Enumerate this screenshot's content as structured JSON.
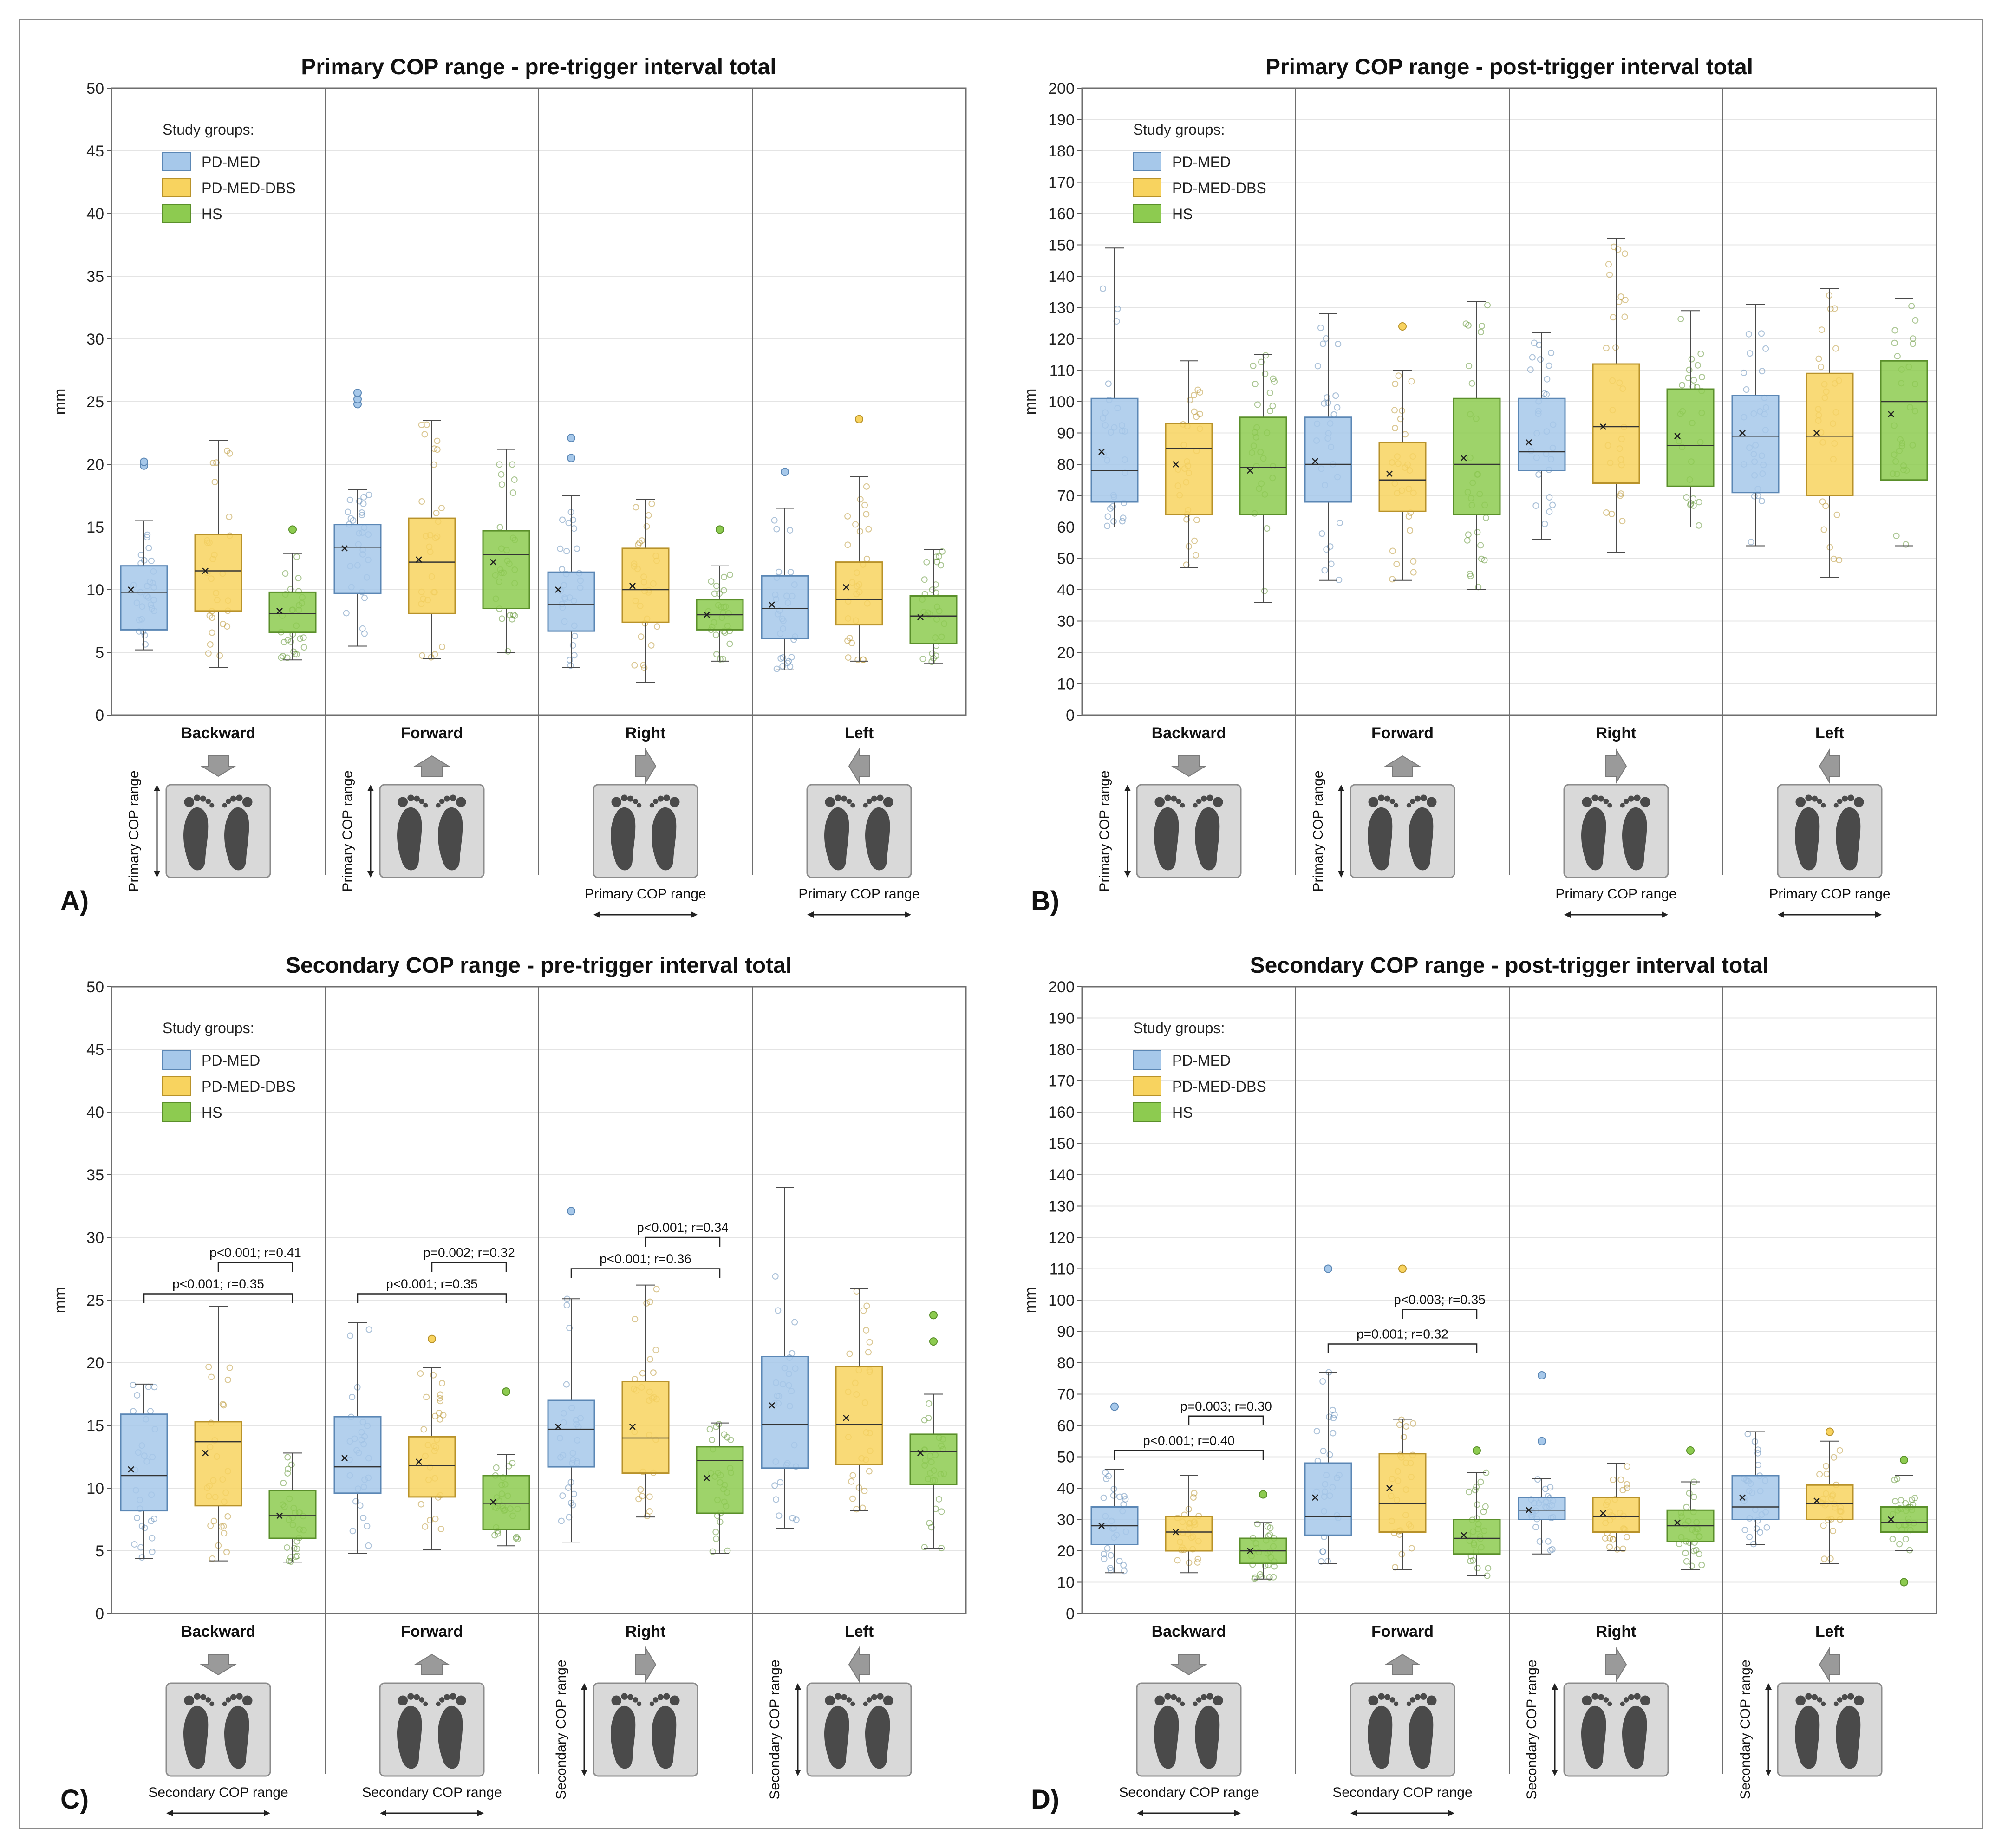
{
  "colors": {
    "PD-MED": "#a6c8ea",
    "PD-MED-DBS": "#f8d35f",
    "HS": "#8dcb50",
    "PD-MED-edge": "#5b87b5",
    "PD-MED-DBS-edge": "#b8922a",
    "HS-edge": "#5a8f2a",
    "panel_edge": "#6e6e6e",
    "grid": "#e4e4e4",
    "arrow": "#9a9a9a",
    "plate": "#d9d9d9",
    "foot": "#4a4a4a"
  },
  "chart_data": [
    {
      "panel": "A)",
      "type": "box",
      "title": "Primary COP range - pre-trigger interval total",
      "ylabel": "mm",
      "ylim": [
        0,
        50
      ],
      "ytick_step": 5,
      "legend_title": "Study groups:",
      "groups": [
        "PD-MED",
        "PD-MED-DBS",
        "HS"
      ],
      "categories": [
        "Backward",
        "Forward",
        "Right",
        "Left"
      ],
      "icon_labels": [
        "Primary COP range",
        "Primary COP range",
        "Primary COP range",
        "Primary COP range"
      ],
      "icon_label_orient": [
        "vertical",
        "vertical",
        "horizontal",
        "horizontal"
      ],
      "annotations": [],
      "boxes": [
        [
          {
            "min": 5.2,
            "q1": 6.8,
            "median": 9.8,
            "q3": 11.9,
            "max": 15.5,
            "mean": 10.0,
            "outliers": [
              19.9,
              20.2
            ]
          },
          {
            "min": 3.8,
            "q1": 8.3,
            "median": 11.5,
            "q3": 14.4,
            "max": 21.9,
            "mean": 11.5,
            "outliers": []
          },
          {
            "min": 4.4,
            "q1": 6.6,
            "median": 8.1,
            "q3": 9.8,
            "max": 12.9,
            "mean": 8.3,
            "outliers": [
              14.8
            ]
          }
        ],
        [
          {
            "min": 5.5,
            "q1": 9.7,
            "median": 13.4,
            "q3": 15.2,
            "max": 18.0,
            "mean": 13.3,
            "outliers": [
              24.8,
              25.2,
              25.7
            ]
          },
          {
            "min": 4.5,
            "q1": 8.1,
            "median": 12.2,
            "q3": 15.7,
            "max": 23.5,
            "mean": 12.4,
            "outliers": []
          },
          {
            "min": 5.0,
            "q1": 8.5,
            "median": 12.8,
            "q3": 14.7,
            "max": 21.2,
            "mean": 12.2,
            "outliers": []
          }
        ],
        [
          {
            "min": 3.8,
            "q1": 6.7,
            "median": 8.8,
            "q3": 11.4,
            "max": 17.5,
            "mean": 10.0,
            "outliers": [
              20.5,
              22.1
            ]
          },
          {
            "min": 2.6,
            "q1": 7.4,
            "median": 10.0,
            "q3": 13.3,
            "max": 17.2,
            "mean": 10.3,
            "outliers": []
          },
          {
            "min": 4.3,
            "q1": 6.8,
            "median": 8.0,
            "q3": 9.2,
            "max": 11.9,
            "mean": 8.0,
            "outliers": [
              14.8
            ]
          }
        ],
        [
          {
            "min": 3.6,
            "q1": 6.1,
            "median": 8.5,
            "q3": 11.1,
            "max": 16.5,
            "mean": 8.8,
            "outliers": [
              19.4
            ]
          },
          {
            "min": 4.3,
            "q1": 7.2,
            "median": 9.2,
            "q3": 12.2,
            "max": 19.0,
            "mean": 10.2,
            "outliers": [
              23.6
            ]
          },
          {
            "min": 4.1,
            "q1": 5.7,
            "median": 7.9,
            "q3": 9.5,
            "max": 13.2,
            "mean": 7.8,
            "outliers": []
          }
        ]
      ]
    },
    {
      "panel": "B)",
      "type": "box",
      "title": "Primary COP range - post-trigger interval total",
      "ylabel": "mm",
      "ylim": [
        0,
        200
      ],
      "ytick_step": 10,
      "legend_title": "Study groups:",
      "groups": [
        "PD-MED",
        "PD-MED-DBS",
        "HS"
      ],
      "categories": [
        "Backward",
        "Forward",
        "Right",
        "Left"
      ],
      "icon_labels": [
        "Primary COP range",
        "Primary COP range",
        "Primary COP range",
        "Primary COP range"
      ],
      "icon_label_orient": [
        "vertical",
        "vertical",
        "horizontal",
        "horizontal"
      ],
      "annotations": [],
      "boxes": [
        [
          {
            "min": 60,
            "q1": 68,
            "median": 78,
            "q3": 101,
            "max": 149,
            "mean": 84,
            "outliers": []
          },
          {
            "min": 47,
            "q1": 64,
            "median": 85,
            "q3": 93,
            "max": 113,
            "mean": 80,
            "outliers": []
          },
          {
            "min": 36,
            "q1": 64,
            "median": 79,
            "q3": 95,
            "max": 115,
            "mean": 78,
            "outliers": []
          }
        ],
        [
          {
            "min": 43,
            "q1": 68,
            "median": 80,
            "q3": 95,
            "max": 128,
            "mean": 81,
            "outliers": []
          },
          {
            "min": 43,
            "q1": 65,
            "median": 75,
            "q3": 87,
            "max": 110,
            "mean": 77,
            "outliers": [
              124
            ]
          },
          {
            "min": 40,
            "q1": 64,
            "median": 80,
            "q3": 101,
            "max": 132,
            "mean": 82,
            "outliers": []
          }
        ],
        [
          {
            "min": 56,
            "q1": 78,
            "median": 84,
            "q3": 101,
            "max": 122,
            "mean": 87,
            "outliers": []
          },
          {
            "min": 52,
            "q1": 74,
            "median": 92,
            "q3": 112,
            "max": 152,
            "mean": 92,
            "outliers": []
          },
          {
            "min": 60,
            "q1": 73,
            "median": 86,
            "q3": 104,
            "max": 129,
            "mean": 89,
            "outliers": []
          }
        ],
        [
          {
            "min": 54,
            "q1": 71,
            "median": 89,
            "q3": 102,
            "max": 131,
            "mean": 90,
            "outliers": []
          },
          {
            "min": 44,
            "q1": 70,
            "median": 89,
            "q3": 109,
            "max": 136,
            "mean": 90,
            "outliers": []
          },
          {
            "min": 54,
            "q1": 75,
            "median": 100,
            "q3": 113,
            "max": 133,
            "mean": 96,
            "outliers": []
          }
        ]
      ]
    },
    {
      "panel": "C)",
      "type": "box",
      "title": "Secondary COP range - pre-trigger interval total",
      "ylabel": "mm",
      "ylim": [
        0,
        50
      ],
      "ytick_step": 5,
      "legend_title": "Study groups:",
      "groups": [
        "PD-MED",
        "PD-MED-DBS",
        "HS"
      ],
      "categories": [
        "Backward",
        "Forward",
        "Right",
        "Left"
      ],
      "icon_labels": [
        "Secondary COP range",
        "Secondary COP range",
        "Secondary COP range",
        "Secondary COP range"
      ],
      "icon_label_orient": [
        "horizontal",
        "horizontal",
        "vertical",
        "vertical"
      ],
      "annotations": [
        {
          "category": 0,
          "from": 0,
          "to": 2,
          "y": 25.5,
          "text": "p<0.001; r=0.35"
        },
        {
          "category": 0,
          "from": 1,
          "to": 2,
          "y": 28.0,
          "text": "p<0.001; r=0.41"
        },
        {
          "category": 1,
          "from": 0,
          "to": 2,
          "y": 25.5,
          "text": "p<0.001; r=0.35"
        },
        {
          "category": 1,
          "from": 1,
          "to": 2,
          "y": 28.0,
          "text": "p=0.002; r=0.32"
        },
        {
          "category": 2,
          "from": 0,
          "to": 2,
          "y": 27.5,
          "text": "p<0.001; r=0.36"
        },
        {
          "category": 2,
          "from": 1,
          "to": 2,
          "y": 30.0,
          "text": "p<0.001; r=0.34"
        }
      ],
      "boxes": [
        [
          {
            "min": 4.4,
            "q1": 8.2,
            "median": 11.0,
            "q3": 15.9,
            "max": 18.3,
            "mean": 11.5,
            "outliers": []
          },
          {
            "min": 4.2,
            "q1": 8.6,
            "median": 13.7,
            "q3": 15.3,
            "max": 24.5,
            "mean": 12.8,
            "outliers": []
          },
          {
            "min": 4.1,
            "q1": 6.0,
            "median": 7.8,
            "q3": 9.8,
            "max": 12.8,
            "mean": 7.8,
            "outliers": []
          }
        ],
        [
          {
            "min": 4.8,
            "q1": 9.6,
            "median": 11.7,
            "q3": 15.7,
            "max": 23.2,
            "mean": 12.4,
            "outliers": []
          },
          {
            "min": 5.1,
            "q1": 9.3,
            "median": 11.8,
            "q3": 14.1,
            "max": 19.6,
            "mean": 12.1,
            "outliers": [
              21.9
            ]
          },
          {
            "min": 5.4,
            "q1": 6.7,
            "median": 8.8,
            "q3": 11.0,
            "max": 12.7,
            "mean": 8.9,
            "outliers": [
              17.7
            ]
          }
        ],
        [
          {
            "min": 5.7,
            "q1": 11.7,
            "median": 14.7,
            "q3": 17.0,
            "max": 25.1,
            "mean": 14.9,
            "outliers": [
              32.1
            ]
          },
          {
            "min": 7.7,
            "q1": 11.2,
            "median": 14.0,
            "q3": 18.5,
            "max": 26.2,
            "mean": 14.9,
            "outliers": []
          },
          {
            "min": 4.8,
            "q1": 8.0,
            "median": 12.2,
            "q3": 13.3,
            "max": 15.2,
            "mean": 10.8,
            "outliers": []
          }
        ],
        [
          {
            "min": 6.8,
            "q1": 11.6,
            "median": 15.1,
            "q3": 20.5,
            "max": 34.0,
            "mean": 16.6,
            "outliers": []
          },
          {
            "min": 8.2,
            "q1": 11.9,
            "median": 15.1,
            "q3": 19.7,
            "max": 25.9,
            "mean": 15.6,
            "outliers": []
          },
          {
            "min": 5.2,
            "q1": 10.3,
            "median": 12.9,
            "q3": 14.3,
            "max": 17.5,
            "mean": 12.8,
            "outliers": [
              21.7,
              23.8
            ]
          }
        ]
      ]
    },
    {
      "panel": "D)",
      "type": "box",
      "title": "Secondary COP range - post-trigger interval total",
      "ylabel": "mm",
      "ylim": [
        0,
        200
      ],
      "ytick_step": 10,
      "legend_title": "Study groups:",
      "groups": [
        "PD-MED",
        "PD-MED-DBS",
        "HS"
      ],
      "categories": [
        "Backward",
        "Forward",
        "Right",
        "Left"
      ],
      "icon_labels": [
        "Secondary COP range",
        "Secondary COP range",
        "Secondary COP range",
        "Secondary COP range"
      ],
      "icon_label_orient": [
        "horizontal",
        "horizontal",
        "vertical",
        "vertical"
      ],
      "annotations": [
        {
          "category": 0,
          "from": 0,
          "to": 2,
          "y": 52,
          "text": "p<0.001; r=0.40"
        },
        {
          "category": 0,
          "from": 1,
          "to": 2,
          "y": 63,
          "text": "p=0.003; r=0.30"
        },
        {
          "category": 1,
          "from": 0,
          "to": 2,
          "y": 86,
          "text": "p=0.001; r=0.32"
        },
        {
          "category": 1,
          "from": 1,
          "to": 2,
          "y": 97,
          "text": "p<0.003; r=0.35"
        }
      ],
      "boxes": [
        [
          {
            "min": 13,
            "q1": 22,
            "median": 28,
            "q3": 34,
            "max": 46,
            "mean": 28,
            "outliers": [
              66
            ]
          },
          {
            "min": 13,
            "q1": 20,
            "median": 26,
            "q3": 31,
            "max": 44,
            "mean": 26,
            "outliers": []
          },
          {
            "min": 11,
            "q1": 16,
            "median": 20,
            "q3": 24,
            "max": 29,
            "mean": 20,
            "outliers": [
              38
            ]
          }
        ],
        [
          {
            "min": 16,
            "q1": 25,
            "median": 31,
            "q3": 48,
            "max": 77,
            "mean": 37,
            "outliers": [
              110
            ]
          },
          {
            "min": 14,
            "q1": 26,
            "median": 35,
            "q3": 51,
            "max": 62,
            "mean": 40,
            "outliers": [
              110
            ]
          },
          {
            "min": 12,
            "q1": 19,
            "median": 24,
            "q3": 30,
            "max": 45,
            "mean": 25,
            "outliers": [
              52
            ]
          }
        ],
        [
          {
            "min": 19,
            "q1": 30,
            "median": 33,
            "q3": 37,
            "max": 43,
            "mean": 33,
            "outliers": [
              55,
              76
            ]
          },
          {
            "min": 20,
            "q1": 26,
            "median": 31,
            "q3": 37,
            "max": 48,
            "mean": 32,
            "outliers": []
          },
          {
            "min": 14,
            "q1": 23,
            "median": 28,
            "q3": 33,
            "max": 42,
            "mean": 29,
            "outliers": [
              52
            ]
          }
        ],
        [
          {
            "min": 22,
            "q1": 30,
            "median": 34,
            "q3": 44,
            "max": 58,
            "mean": 37,
            "outliers": []
          },
          {
            "min": 16,
            "q1": 30,
            "median": 35,
            "q3": 41,
            "max": 55,
            "mean": 36,
            "outliers": [
              58
            ]
          },
          {
            "min": 20,
            "q1": 26,
            "median": 29,
            "q3": 34,
            "max": 44,
            "mean": 30,
            "outliers": [
              10,
              49
            ]
          }
        ]
      ]
    }
  ]
}
